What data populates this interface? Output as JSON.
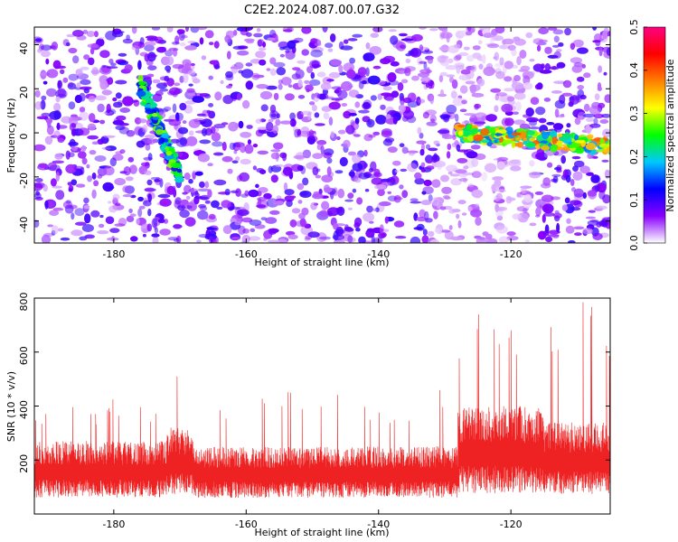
{
  "title": "C2E2.2024.087.00.07.G32",
  "chart_data": [
    {
      "type": "heatmap",
      "xlabel": "Height of straight line (km)",
      "ylabel": "Frequency (Hz)",
      "xlim": [
        -192,
        -105
      ],
      "ylim": [
        -50,
        48
      ],
      "xticks": [
        -180,
        -160,
        -140,
        -120
      ],
      "yticks": [
        -40,
        -20,
        0,
        20,
        40
      ],
      "colorbar": {
        "label": "Normalized spectral amplitude",
        "range": [
          0.0,
          0.5
        ],
        "ticks": [
          0.0,
          0.1,
          0.2,
          0.3,
          0.4,
          0.5
        ],
        "colors": [
          "#ffffff",
          "#8a00ff",
          "#0000ff",
          "#00c8ff",
          "#00ff00",
          "#ffff00",
          "#ff8000",
          "#ff0000",
          "#ff0080"
        ]
      },
      "features": [
        {
          "desc": "background noise",
          "x": [
            -192,
            -105
          ],
          "y": [
            -50,
            48
          ],
          "level": 0.08
        },
        {
          "desc": "bright track",
          "x": [
            -128,
            -105
          ],
          "y_start": 0,
          "y_end": -6,
          "level": 0.25
        },
        {
          "desc": "weak vertical track",
          "x": [
            -176,
            -170
          ],
          "y_start": 22,
          "y_end": -20,
          "level": 0.18
        }
      ]
    },
    {
      "type": "line",
      "xlabel": "Height of straight line (km)",
      "ylabel": "SNR (10 * v/v)",
      "xlim": [
        -192,
        -105
      ],
      "ylim": [
        0,
        800
      ],
      "xticks": [
        -180,
        -160,
        -140,
        -120
      ],
      "yticks": [
        200,
        400,
        600,
        800
      ],
      "series": [
        {
          "color": "#ee2222",
          "segments": [
            {
              "x": [
                -192,
                -172
              ],
              "base": 160,
              "amp": 110,
              "spike_max": 430
            },
            {
              "x": [
                -172,
                -168
              ],
              "base": 190,
              "amp": 130,
              "spike_max": 600
            },
            {
              "x": [
                -168,
                -128
              ],
              "base": 150,
              "amp": 100,
              "spike_max": 460
            },
            {
              "x": [
                -128,
                -115
              ],
              "base": 230,
              "amp": 170,
              "spike_max": 780
            },
            {
              "x": [
                -115,
                -105
              ],
              "base": 200,
              "amp": 140,
              "spike_max": 800
            }
          ]
        }
      ]
    }
  ]
}
